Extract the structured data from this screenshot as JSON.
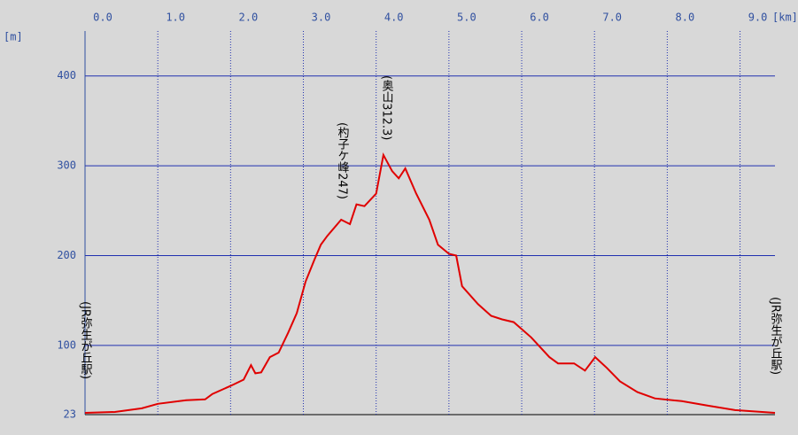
{
  "chart_data": {
    "type": "line",
    "x_unit": "[km]",
    "y_unit": "[m]",
    "x": [
      0,
      0.41,
      0.78,
      1.0,
      1.39,
      1.65,
      1.75,
      2.0,
      2.18,
      2.28,
      2.34,
      2.42,
      2.54,
      2.66,
      2.79,
      2.91,
      3.03,
      3.15,
      3.24,
      3.33,
      3.52,
      3.64,
      3.73,
      3.84,
      4.0,
      4.1,
      4.22,
      4.31,
      4.4,
      4.55,
      4.73,
      4.85,
      5.0,
      5.1,
      5.18,
      5.4,
      5.58,
      5.73,
      5.89,
      6.13,
      6.38,
      6.5,
      6.72,
      6.87,
      7.01,
      7.17,
      7.35,
      7.59,
      7.83,
      8.2,
      8.56,
      8.93,
      9.48
    ],
    "values": [
      25,
      26,
      30,
      35,
      39,
      40,
      46,
      55,
      62,
      78,
      69,
      70,
      87,
      92,
      114,
      136,
      171,
      195,
      212,
      222,
      240,
      235,
      257,
      255,
      269,
      312,
      294,
      286,
      297,
      269,
      240,
      212,
      202,
      200,
      166,
      146,
      133,
      129,
      126,
      109,
      87,
      80,
      80,
      72,
      87,
      75,
      60,
      48,
      41,
      38,
      33,
      28,
      25
    ],
    "color": "#e00000",
    "annotations": [
      "(JR弥生が丘駅)",
      "(杓子ケ峰247)",
      "(奥山312.3)",
      "(JR弥生が丘駅)"
    ],
    "xlim": [
      0,
      9.48
    ],
    "xticks": [
      {
        "value": 0,
        "label": "0.0"
      },
      {
        "value": 1,
        "label": "1.0"
      },
      {
        "value": 2,
        "label": "2.0"
      },
      {
        "value": 3,
        "label": "3.0"
      },
      {
        "value": 4,
        "label": "4.0"
      },
      {
        "value": 5,
        "label": "5.0"
      },
      {
        "value": 6,
        "label": "6.0"
      },
      {
        "value": 7,
        "label": "7.0"
      },
      {
        "value": 8,
        "label": "8.0"
      },
      {
        "value": 9,
        "label": "9.0"
      }
    ],
    "ylim": [
      23,
      450
    ],
    "yticks": [
      23,
      100,
      200,
      300,
      400
    ],
    "grid": true
  }
}
